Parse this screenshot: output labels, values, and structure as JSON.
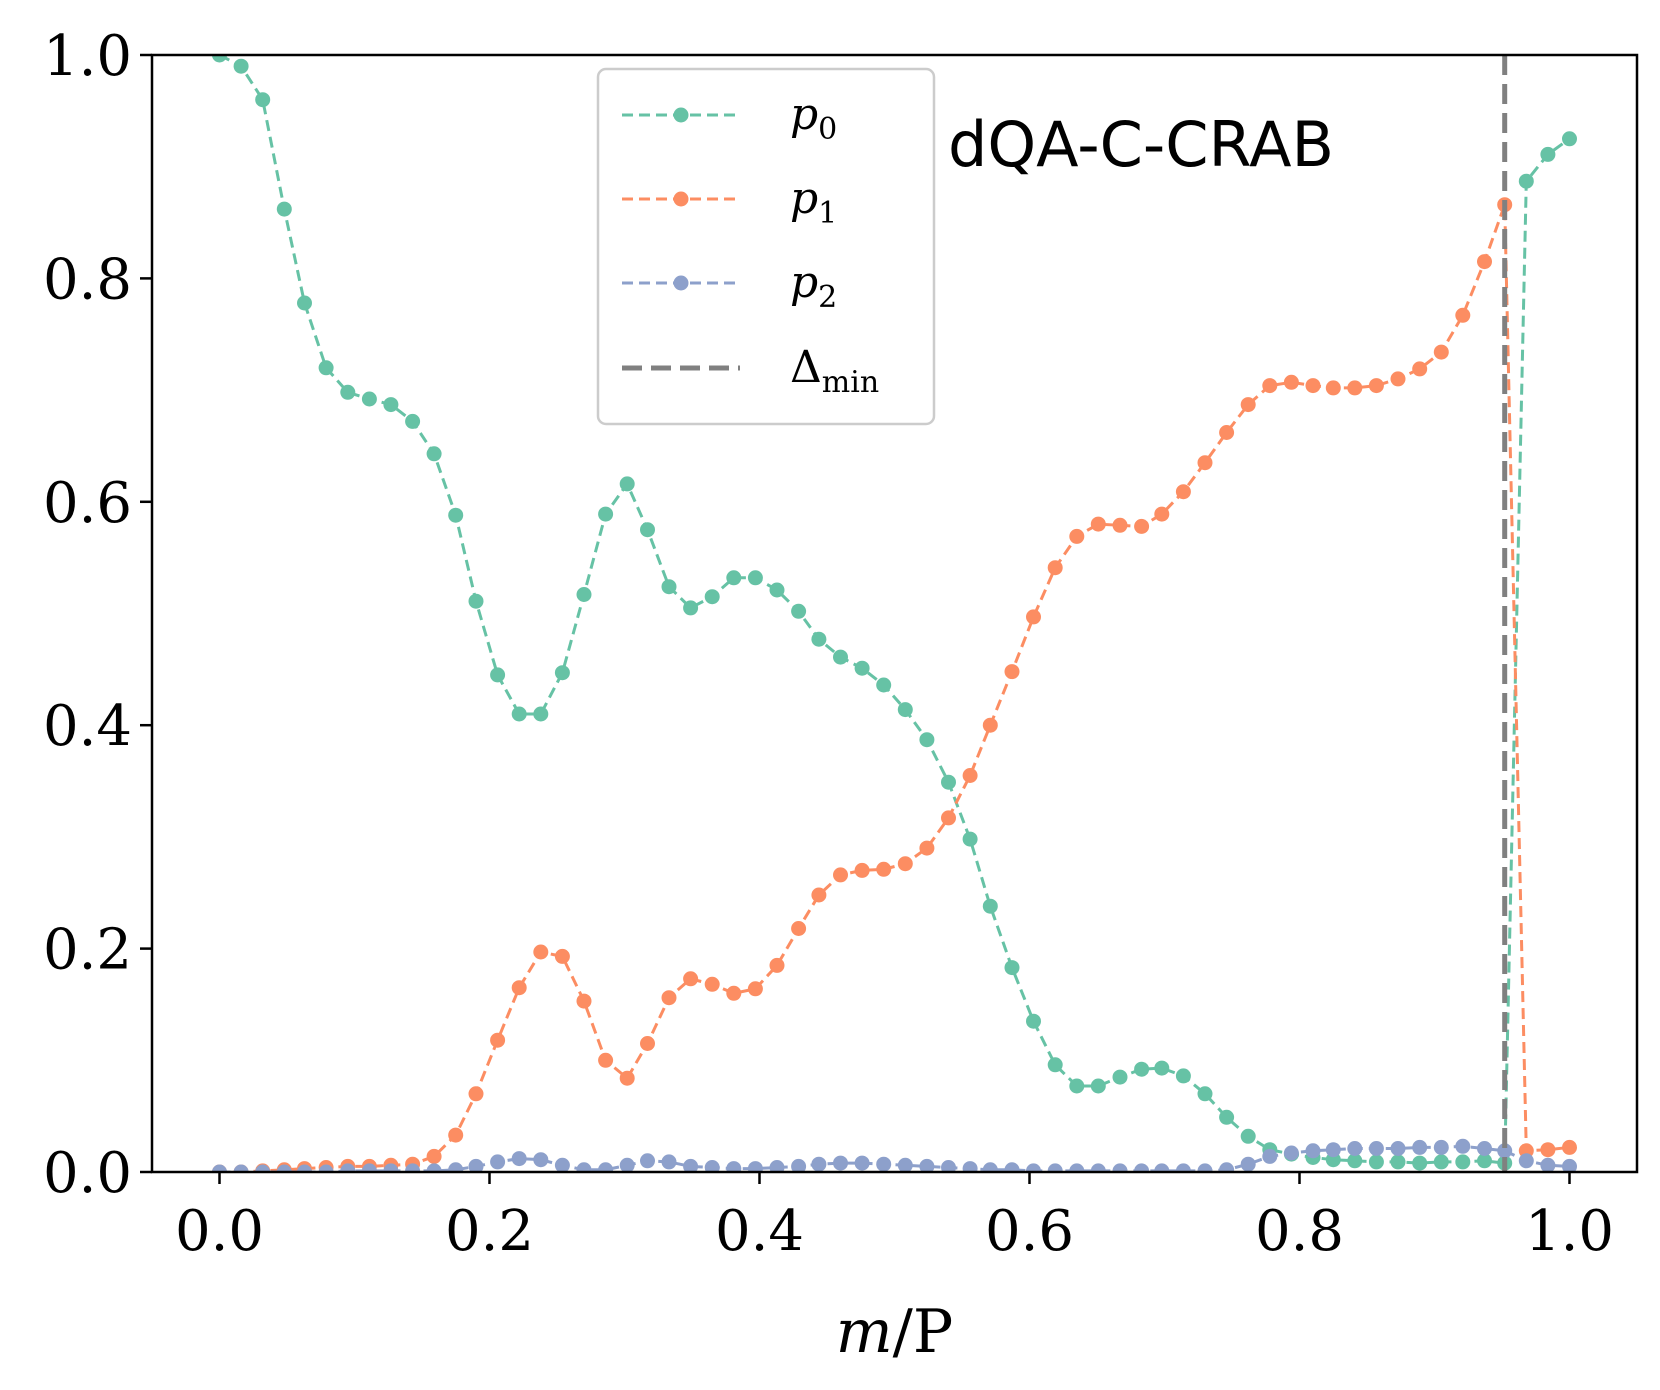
{
  "chart_data": {
    "type": "line",
    "title": "",
    "annotation": "dQA-C-CRAB",
    "xlabel": "m/P",
    "xlabel_var": "m",
    "xlabel_rest": "/P",
    "ylabel": "",
    "xlim": [
      -0.05,
      1.05
    ],
    "ylim": [
      0.0,
      1.0
    ],
    "xticks": [
      0.0,
      0.2,
      0.4,
      0.6,
      0.8,
      1.0
    ],
    "yticks": [
      0.0,
      0.2,
      0.4,
      0.6,
      0.8,
      1.0
    ],
    "xtick_labels": [
      "0.0",
      "0.2",
      "0.4",
      "0.6",
      "0.8",
      "1.0"
    ],
    "ytick_labels": [
      "0.0",
      "0.2",
      "0.4",
      "0.6",
      "0.8",
      "1.0"
    ],
    "grid": false,
    "legend_position": "top-center",
    "x": [
      0.0,
      0.016,
      0.032,
      0.048,
      0.063,
      0.079,
      0.095,
      0.111,
      0.127,
      0.143,
      0.159,
      0.175,
      0.19,
      0.206,
      0.222,
      0.238,
      0.254,
      0.27,
      0.286,
      0.302,
      0.317,
      0.333,
      0.349,
      0.365,
      0.381,
      0.397,
      0.413,
      0.429,
      0.444,
      0.46,
      0.476,
      0.492,
      0.508,
      0.524,
      0.54,
      0.556,
      0.571,
      0.587,
      0.603,
      0.619,
      0.635,
      0.651,
      0.667,
      0.683,
      0.698,
      0.714,
      0.73,
      0.746,
      0.762,
      0.778,
      0.794,
      0.81,
      0.825,
      0.841,
      0.857,
      0.873,
      0.889,
      0.905,
      0.921,
      0.937,
      0.952,
      0.968,
      0.984,
      1.0
    ],
    "series": [
      {
        "name": "p_0",
        "label_main": "p",
        "label_sub": "0",
        "color": "#66c2a5",
        "values": [
          1.0,
          0.99,
          0.96,
          0.862,
          0.778,
          0.72,
          0.698,
          0.692,
          0.687,
          0.672,
          0.643,
          0.588,
          0.511,
          0.445,
          0.41,
          0.41,
          0.447,
          0.517,
          0.589,
          0.616,
          0.575,
          0.524,
          0.505,
          0.515,
          0.532,
          0.532,
          0.521,
          0.502,
          0.477,
          0.461,
          0.451,
          0.436,
          0.414,
          0.387,
          0.349,
          0.298,
          0.238,
          0.183,
          0.135,
          0.096,
          0.077,
          0.077,
          0.085,
          0.092,
          0.093,
          0.086,
          0.07,
          0.049,
          0.032,
          0.02,
          0.016,
          0.013,
          0.011,
          0.01,
          0.009,
          0.009,
          0.008,
          0.009,
          0.009,
          0.01,
          0.008,
          0.887,
          0.911,
          0.925
        ]
      },
      {
        "name": "p_1",
        "label_main": "p",
        "label_sub": "1",
        "color": "#fc8d62",
        "values": [
          0.0,
          0.0,
          0.001,
          0.002,
          0.003,
          0.004,
          0.005,
          0.005,
          0.006,
          0.007,
          0.014,
          0.033,
          0.07,
          0.118,
          0.165,
          0.197,
          0.193,
          0.153,
          0.1,
          0.084,
          0.115,
          0.156,
          0.173,
          0.168,
          0.16,
          0.164,
          0.185,
          0.218,
          0.248,
          0.266,
          0.27,
          0.271,
          0.276,
          0.29,
          0.317,
          0.355,
          0.4,
          0.448,
          0.497,
          0.541,
          0.569,
          0.58,
          0.579,
          0.578,
          0.589,
          0.609,
          0.635,
          0.662,
          0.687,
          0.704,
          0.707,
          0.704,
          0.702,
          0.702,
          0.704,
          0.71,
          0.719,
          0.734,
          0.767,
          0.815,
          0.866,
          0.019,
          0.02,
          0.022
        ]
      },
      {
        "name": "p_2",
        "label_main": "p",
        "label_sub": "2",
        "color": "#8da0cb",
        "values": [
          0.0,
          0.0,
          0.0,
          0.0,
          0.0,
          0.0,
          0.001,
          0.001,
          0.001,
          0.001,
          0.001,
          0.002,
          0.005,
          0.009,
          0.012,
          0.011,
          0.006,
          0.002,
          0.002,
          0.006,
          0.01,
          0.009,
          0.005,
          0.004,
          0.003,
          0.003,
          0.004,
          0.005,
          0.007,
          0.008,
          0.008,
          0.007,
          0.006,
          0.005,
          0.004,
          0.003,
          0.002,
          0.002,
          0.001,
          0.001,
          0.001,
          0.001,
          0.001,
          0.001,
          0.001,
          0.001,
          0.001,
          0.002,
          0.007,
          0.014,
          0.017,
          0.019,
          0.02,
          0.021,
          0.021,
          0.021,
          0.022,
          0.022,
          0.023,
          0.021,
          0.019,
          0.01,
          0.006,
          0.005
        ]
      }
    ],
    "vline": {
      "name": "Delta_min",
      "label_main": "Δ",
      "label_sub": "min",
      "x": 0.952,
      "color": "#808080"
    }
  }
}
